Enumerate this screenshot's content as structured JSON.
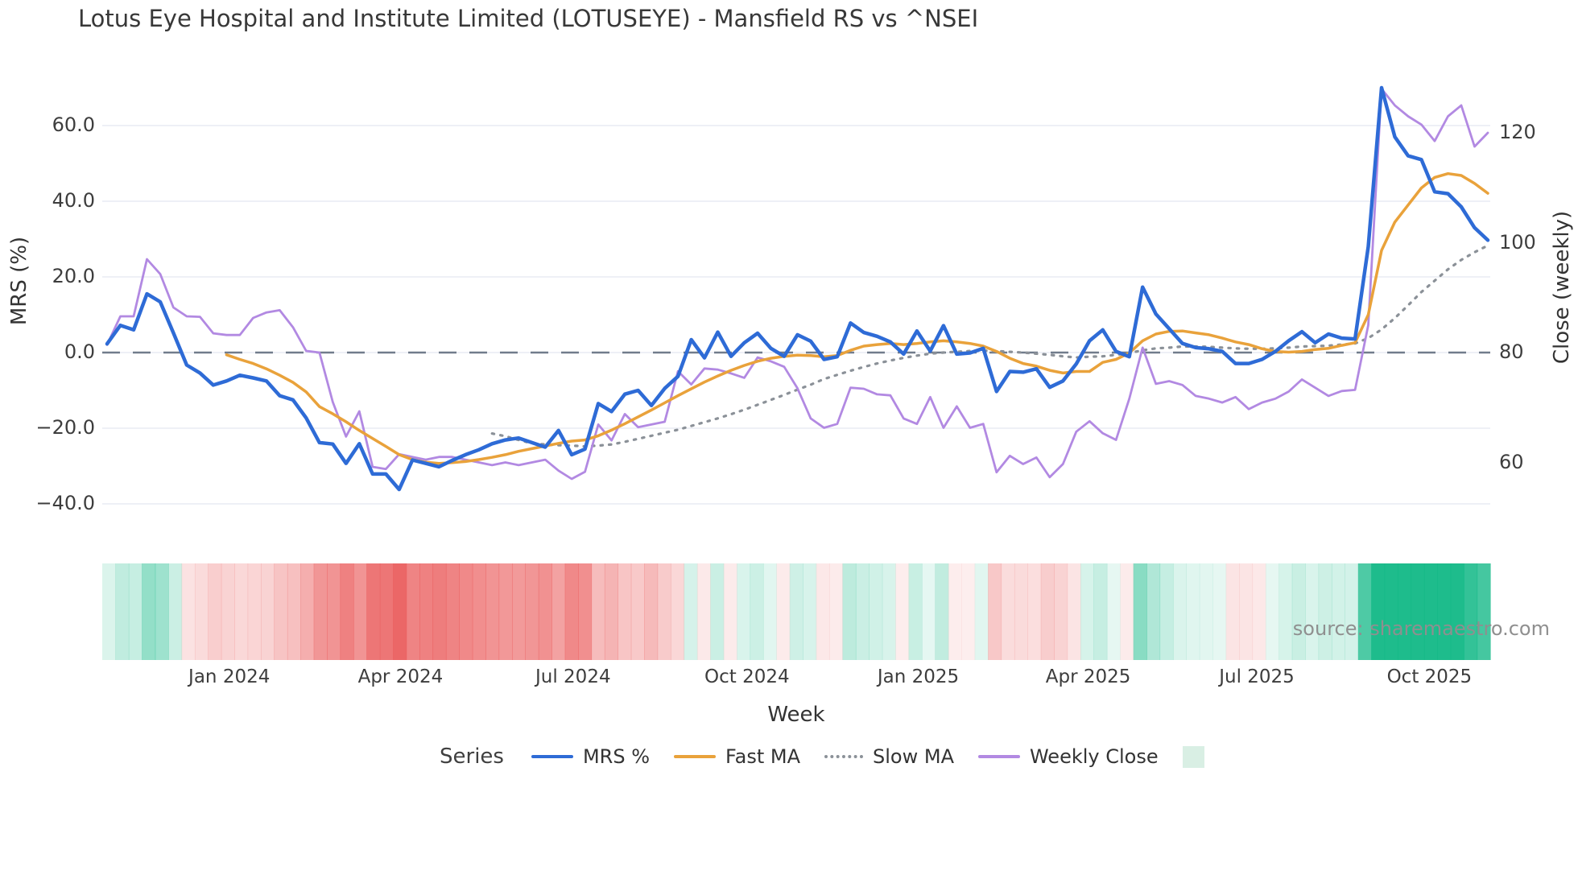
{
  "page": {
    "title": "Lotus Eye Hospital and Institute Limited (LOTUSEYE) - Mansfield RS vs ^NSEI",
    "source_watermark": "source: sharemaestro.com"
  },
  "colors": {
    "background": "#ffffff",
    "grid": "#e9ecf4",
    "zero_line": "#717c8c",
    "text": "#3a3a3a",
    "muted_text": "#8f8f8f",
    "mrs_blue": "#2e6bd6",
    "fast_ma_orange": "#e9a23b",
    "slow_ma_gray": "#8b9198",
    "weekly_close_purple": "#b289e2",
    "heat_positive": "#12b886",
    "heat_negative": "#ea5c5c",
    "legend_square": "#d9efe4"
  },
  "legend": {
    "title": "Series",
    "items": [
      {
        "label": "MRS %",
        "color": "#2e6bd6",
        "style": "solid"
      },
      {
        "label": "Fast MA",
        "color": "#e9a23b",
        "style": "solid"
      },
      {
        "label": "Slow MA",
        "color": "#8b9198",
        "style": "dotted"
      },
      {
        "label": "Weekly Close",
        "color": "#b289e2",
        "style": "solid"
      },
      {
        "label": "",
        "color": "#d9efe4",
        "style": "square"
      }
    ]
  },
  "chart_data": {
    "type": "line",
    "title": "Lotus Eye Hospital and Institute Limited (LOTUSEYE) - Mansfield RS vs ^NSEI",
    "xlabel": "Week",
    "ylabel_left": "MRS (%)",
    "ylabel_right": "Close (weekly)",
    "x_unit": "weekly points, Nov 2023 through Nov 2025",
    "n_weeks": 105,
    "grid": true,
    "legend_position": "bottom",
    "x_ticks": [
      {
        "label": "Jan 2024",
        "week": 9.2
      },
      {
        "label": "Apr 2024",
        "week": 22.1
      },
      {
        "label": "Jul 2024",
        "week": 35.1
      },
      {
        "label": "Oct 2024",
        "week": 48.2
      },
      {
        "label": "Jan 2025",
        "week": 61.1
      },
      {
        "label": "Apr 2025",
        "week": 73.9
      },
      {
        "label": "Jul 2025",
        "week": 86.6
      },
      {
        "label": "Oct 2025",
        "week": 99.6
      }
    ],
    "y_left_axis": {
      "labels": [
        "60.0",
        "40.0",
        "20.0",
        "0.0",
        "−20.0",
        "−40.0"
      ],
      "values": [
        60,
        40,
        20,
        0,
        -20,
        -40
      ],
      "range": [
        -47,
        75
      ]
    },
    "y_right_axis": {
      "labels": [
        "120",
        "100",
        "80",
        "60"
      ],
      "values": [
        120,
        100,
        80,
        60
      ],
      "range": [
        54.5,
        131.7
      ]
    },
    "zero_line_left": 0,
    "series": [
      {
        "name": "MRS %",
        "axis": "left",
        "color": "#2e6bd6",
        "style": "solid",
        "width": 4.5,
        "start_week": 0,
        "values": [
          2.3,
          7.2,
          6.0,
          15.5,
          13.4,
          5.2,
          -3.3,
          -5.4,
          -8.6,
          -7.5,
          -6.0,
          -6.7,
          -7.5,
          -11.4,
          -12.5,
          -17.3,
          -23.8,
          -24.2,
          -29.3,
          -24.1,
          -32.1,
          -32.1,
          -36.2,
          -28.4,
          -29.3,
          -30.2,
          -28.5,
          -27.0,
          -25.7,
          -24.1,
          -23.1,
          -22.6,
          -23.8,
          -25.0,
          -20.6,
          -27.0,
          -25.5,
          -13.5,
          -15.6,
          -11.0,
          -10.0,
          -14.0,
          -9.5,
          -6.3,
          3.4,
          -1.4,
          5.4,
          -1.0,
          2.6,
          5.1,
          1.1,
          -1.0,
          4.7,
          3.0,
          -1.8,
          -1.1,
          7.8,
          5.3,
          4.3,
          2.8,
          -0.4,
          5.7,
          0.4,
          7.1,
          -0.4,
          -0.1,
          1.1,
          -10.3,
          -5.0,
          -5.2,
          -4.3,
          -9.2,
          -7.5,
          -3.0,
          3.1,
          6.0,
          0.3,
          -1.1,
          17.3,
          10.2,
          6.3,
          2.4,
          1.3,
          1.0,
          0.3,
          -2.9,
          -2.9,
          -1.8,
          0.3,
          3.1,
          5.5,
          2.6,
          4.9,
          3.8,
          3.6,
          28.0,
          70.0,
          57.0,
          52.0,
          51.0,
          42.5,
          42.0,
          38.5,
          33.0,
          29.7
        ]
      },
      {
        "name": "Fast MA",
        "axis": "left",
        "color": "#e9a23b",
        "style": "solid",
        "width": 3.5,
        "start_week": 9,
        "values": [
          -0.6,
          -1.8,
          -2.9,
          -4.3,
          -6.0,
          -7.9,
          -10.4,
          -14.3,
          -16.2,
          -18.3,
          -20.6,
          -22.7,
          -24.8,
          -27.0,
          -28.3,
          -29.0,
          -29.3,
          -29.1,
          -28.8,
          -28.3,
          -27.7,
          -27.0,
          -26.1,
          -25.4,
          -24.7,
          -24.0,
          -23.4,
          -23.1,
          -22.0,
          -20.5,
          -18.8,
          -17.0,
          -15.2,
          -13.3,
          -11.4,
          -9.6,
          -7.8,
          -6.2,
          -4.7,
          -3.4,
          -2.3,
          -1.5,
          -1.0,
          -0.7,
          -0.8,
          -1.1,
          -0.8,
          0.6,
          1.7,
          2.1,
          2.4,
          2.1,
          2.4,
          2.8,
          3.1,
          2.8,
          2.4,
          1.7,
          0.3,
          -1.5,
          -2.9,
          -3.6,
          -4.7,
          -5.4,
          -5.0,
          -5.0,
          -2.6,
          -1.8,
          -0.1,
          3.1,
          4.9,
          5.6,
          5.7,
          5.2,
          4.7,
          3.8,
          2.8,
          2.1,
          1.0,
          0.3,
          0.1,
          0.3,
          0.8,
          1.1,
          1.9,
          2.6,
          10.0,
          27.0,
          34.5,
          39.0,
          43.5,
          46.3,
          47.3,
          46.8,
          44.7,
          42.1
        ]
      },
      {
        "name": "Slow MA",
        "axis": "left",
        "color": "#8b9198",
        "style": "dotted",
        "width": 3.2,
        "start_week": 29,
        "values": [
          -21.4,
          -22.1,
          -23.1,
          -24.0,
          -24.3,
          -24.5,
          -24.6,
          -24.8,
          -24.6,
          -24.3,
          -23.6,
          -22.8,
          -22.0,
          -21.2,
          -20.4,
          -19.4,
          -18.4,
          -17.4,
          -16.3,
          -15.1,
          -13.8,
          -12.5,
          -11.2,
          -9.8,
          -8.5,
          -7.0,
          -5.9,
          -4.8,
          -3.8,
          -2.9,
          -2.1,
          -1.4,
          -0.8,
          -0.3,
          0.0,
          0.2,
          0.4,
          0.5,
          0.4,
          0.2,
          0.0,
          -0.3,
          -0.6,
          -1.0,
          -1.3,
          -1.1,
          -1.0,
          -0.6,
          -0.1,
          0.6,
          1.1,
          1.3,
          1.6,
          1.6,
          1.5,
          1.3,
          1.1,
          1.0,
          1.0,
          1.1,
          1.3,
          1.6,
          1.7,
          1.8,
          2.1,
          2.4,
          3.8,
          6.1,
          9.1,
          12.5,
          16.0,
          19.0,
          22.0,
          24.5,
          26.5,
          28.3
        ]
      },
      {
        "name": "Weekly Close",
        "axis": "right",
        "color": "#b289e2",
        "style": "solid",
        "width": 2.8,
        "start_week": 0,
        "values": [
          81.4,
          86.6,
          86.6,
          97.0,
          94.3,
          88.2,
          86.6,
          86.5,
          83.5,
          83.2,
          83.2,
          86.3,
          87.3,
          87.7,
          84.6,
          80.3,
          80.0,
          71.0,
          64.7,
          69.3,
          59.2,
          58.8,
          61.5,
          61.0,
          60.5,
          61.0,
          61.0,
          60.5,
          60.0,
          59.5,
          60.0,
          59.5,
          60.0,
          60.5,
          58.5,
          57.0,
          58.3,
          66.9,
          64.0,
          68.8,
          66.4,
          66.9,
          67.4,
          76.6,
          74.2,
          77.1,
          76.9,
          76.2,
          75.4,
          79.1,
          78.4,
          77.4,
          73.5,
          68.0,
          66.3,
          67.0,
          73.6,
          73.4,
          72.4,
          72.2,
          68.0,
          67.0,
          71.9,
          66.3,
          70.2,
          66.3,
          67.0,
          58.2,
          61.2,
          59.7,
          60.9,
          57.3,
          59.7,
          65.6,
          67.5,
          65.3,
          64.1,
          71.6,
          80.9,
          74.3,
          74.8,
          74.1,
          72.1,
          71.6,
          70.9,
          71.9,
          69.7,
          70.9,
          71.6,
          72.9,
          75.1,
          73.6,
          72.1,
          73.0,
          73.2,
          85.0,
          128.0,
          125.0,
          123.0,
          121.5,
          118.5,
          123.0,
          125.0,
          117.5,
          120.0
        ]
      }
    ],
    "heatmap": {
      "description": "weekly strip below plot, color from MRS % sign and magnitude",
      "source_series": "MRS %",
      "positive_color": "#12b886",
      "negative_color": "#ea5c5c"
    }
  }
}
